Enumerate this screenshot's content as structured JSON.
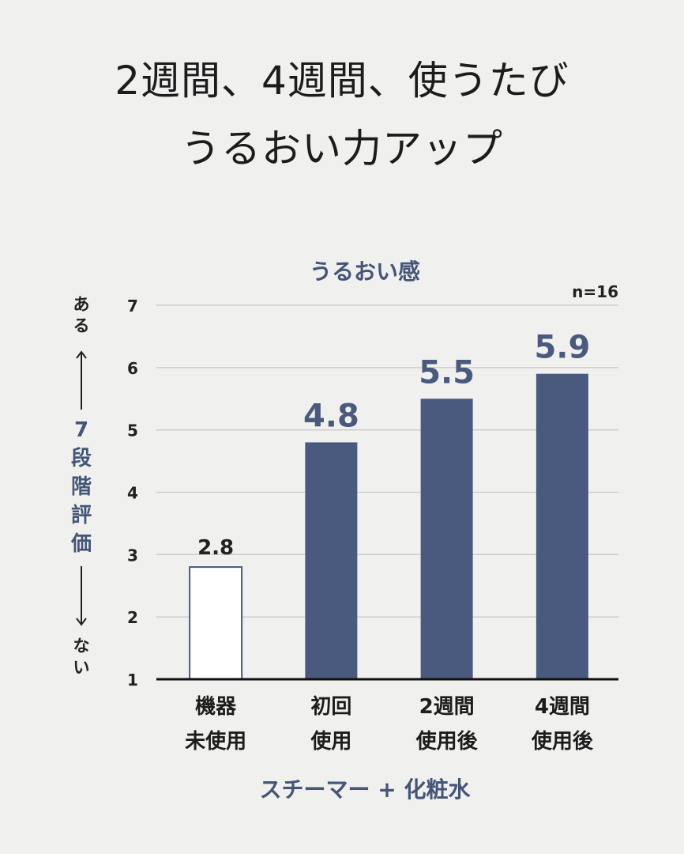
{
  "header": {
    "line1": "2週間、4週間、使うたび",
    "line2": "うるおい力アップ"
  },
  "chart_data": {
    "type": "bar",
    "title": "うるおい感",
    "sample_note": "n=16",
    "categories": [
      [
        "機器",
        "未使用"
      ],
      [
        "初回",
        "使用"
      ],
      [
        "2週間",
        "使用後"
      ],
      [
        "4週間",
        "使用後"
      ]
    ],
    "values": [
      2.8,
      4.8,
      5.5,
      5.9
    ],
    "value_labels": [
      "2.8",
      "4.8",
      "5.5",
      "5.9"
    ],
    "ylim": [
      1,
      7
    ],
    "yticks": [
      1,
      2,
      3,
      4,
      5,
      6,
      7
    ],
    "ylabel": {
      "top": "ある",
      "middle": "7段階評価",
      "bottom": "ない"
    },
    "xlabel": "スチーマー + 化粧水",
    "grid": true,
    "colors": {
      "filled": "#4a5a7e",
      "empty_fill": "#ffffff",
      "accent_text": "#455578"
    },
    "bar_styles": [
      "outline",
      "filled",
      "filled",
      "filled"
    ]
  }
}
